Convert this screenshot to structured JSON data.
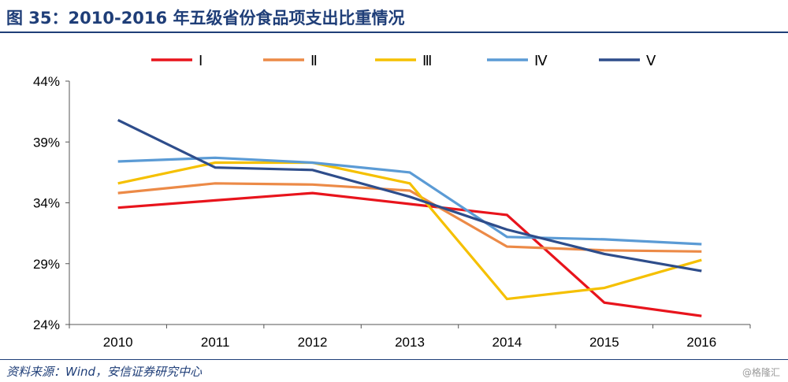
{
  "header": {
    "title": "图 35：2010-2016 年五级省份食品项支出比重情况"
  },
  "footer": {
    "source": "资料来源：Wind，安信证券研究中心",
    "watermark": "@格隆汇"
  },
  "chart_data": {
    "type": "line",
    "title": "",
    "xlabel": "",
    "ylabel": "",
    "categories": [
      "2010",
      "2011",
      "2012",
      "2013",
      "2014",
      "2015",
      "2016"
    ],
    "ylim": [
      24,
      44
    ],
    "yticks": [
      24,
      29,
      34,
      39,
      44
    ],
    "ytick_labels": [
      "24%",
      "29%",
      "34%",
      "39%",
      "44%"
    ],
    "grid": false,
    "legend_position": "top",
    "series": [
      {
        "name": "Ⅰ",
        "color": "#e8141c",
        "values": [
          33.6,
          34.2,
          34.8,
          33.9,
          33.0,
          25.8,
          24.7
        ]
      },
      {
        "name": "Ⅱ",
        "color": "#ec8a47",
        "values": [
          34.8,
          35.6,
          35.5,
          35.0,
          30.4,
          30.1,
          30.0
        ]
      },
      {
        "name": "Ⅲ",
        "color": "#f5c000",
        "values": [
          35.6,
          37.3,
          37.3,
          35.6,
          26.1,
          27.0,
          29.3
        ]
      },
      {
        "name": "Ⅳ",
        "color": "#5b9bd5",
        "values": [
          37.4,
          37.7,
          37.3,
          36.5,
          31.2,
          31.0,
          30.6
        ]
      },
      {
        "name": "Ⅴ",
        "color": "#2e4d8b",
        "values": [
          40.8,
          36.9,
          36.7,
          34.5,
          31.8,
          29.8,
          28.4
        ]
      }
    ]
  }
}
